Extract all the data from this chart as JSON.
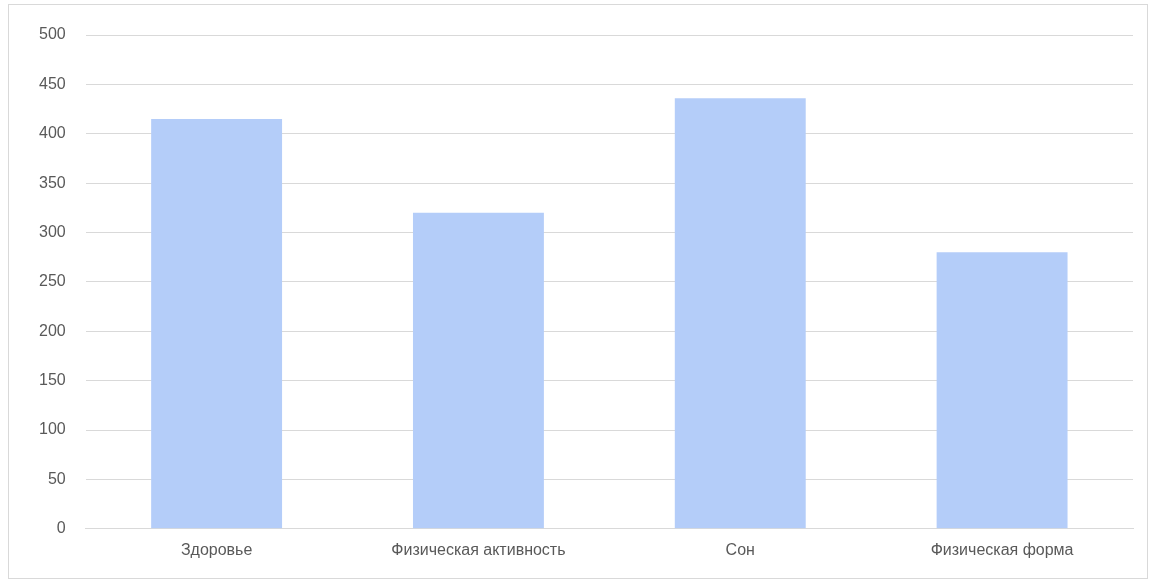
{
  "chart_data": {
    "type": "bar",
    "categories": [
      "Здоровье",
      "Физическая активность",
      "Сон",
      "Физическая форма"
    ],
    "values": [
      415,
      320,
      436,
      280
    ],
    "color": "#b4cdf9",
    "ylim": [
      0,
      500
    ],
    "yticks": [
      0,
      50,
      100,
      150,
      200,
      250,
      300,
      350,
      400,
      450,
      500
    ],
    "grid": "y",
    "legend": false
  }
}
